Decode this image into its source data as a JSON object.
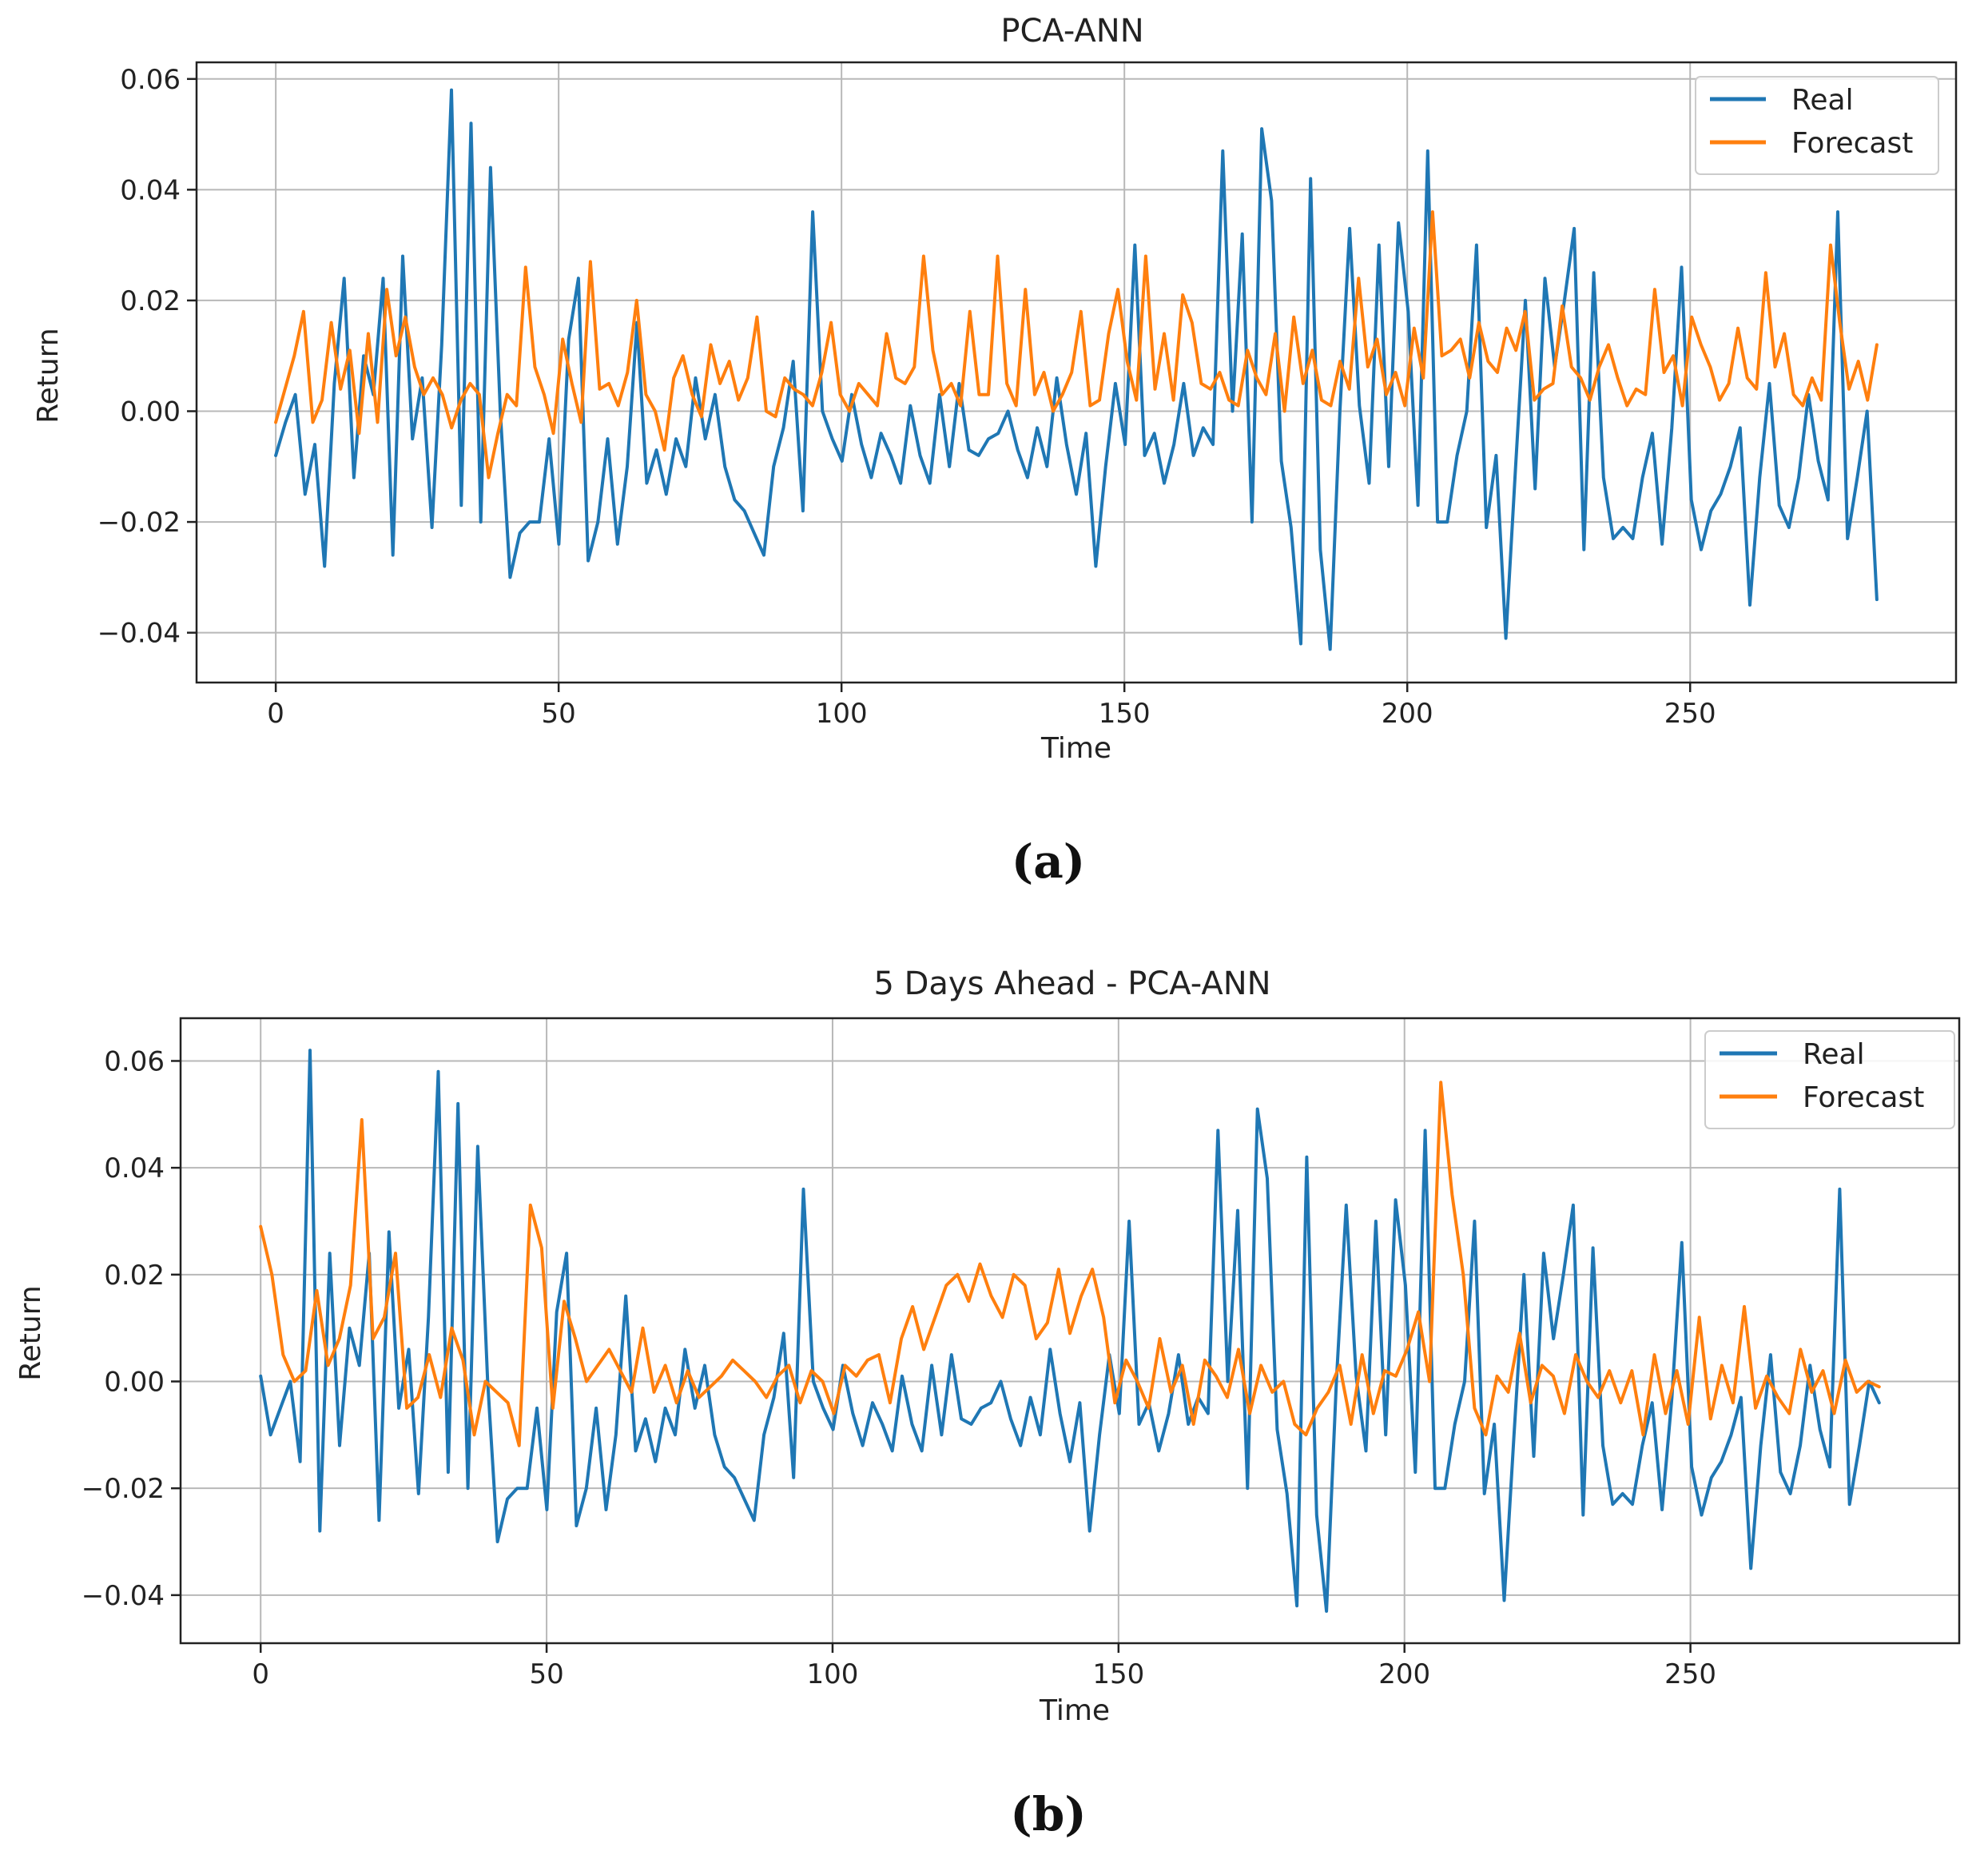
{
  "chart_data": [
    {
      "type": "line",
      "title": "PCA-ANN",
      "xlabel": "Time",
      "ylabel": "Return",
      "panel_label": "(a)",
      "xlim": [
        -14,
        297
      ],
      "ylim": [
        -0.049,
        0.063
      ],
      "xticks": [
        0,
        50,
        100,
        150,
        200,
        250
      ],
      "xtick_labels": [
        "0",
        "50",
        "100",
        "150",
        "200",
        "250"
      ],
      "yticks": [
        -0.04,
        -0.02,
        0.0,
        0.02,
        0.04,
        0.06
      ],
      "ytick_labels": [
        "−0.04",
        "−0.02",
        "0.00",
        "0.02",
        "0.04",
        "0.06"
      ],
      "grid": true,
      "legend_position": "top-right",
      "series": [
        {
          "name": "Real",
          "color": "#1f77b4",
          "values": [
            -0.008,
            -0.002,
            0.003,
            -0.015,
            -0.006,
            -0.028,
            0.005,
            0.024,
            -0.012,
            0.01,
            0.003,
            0.024,
            -0.026,
            0.028,
            -0.005,
            0.006,
            -0.021,
            0.012,
            0.058,
            -0.017,
            0.052,
            -0.02,
            0.044,
            0.0,
            -0.03,
            -0.022,
            -0.02,
            -0.02,
            -0.005,
            -0.024,
            0.013,
            0.024,
            -0.027,
            -0.02,
            -0.005,
            -0.024,
            -0.01,
            0.016,
            -0.013,
            -0.007,
            -0.015,
            -0.005,
            -0.01,
            0.006,
            -0.005,
            0.003,
            -0.01,
            -0.016,
            -0.018,
            -0.022,
            -0.026,
            -0.01,
            -0.003,
            0.009,
            -0.018,
            0.036,
            0.0,
            -0.005,
            -0.009,
            0.003,
            -0.006,
            -0.012,
            -0.004,
            -0.008,
            -0.013,
            0.001,
            -0.008,
            -0.013,
            0.003,
            -0.01,
            0.005,
            -0.007,
            -0.008,
            -0.005,
            -0.004,
            0.0,
            -0.007,
            -0.012,
            -0.003,
            -0.01,
            0.006,
            -0.006,
            -0.015,
            -0.004,
            -0.028,
            -0.01,
            0.005,
            -0.006,
            0.03,
            -0.008,
            -0.004,
            -0.013,
            -0.006,
            0.005,
            -0.008,
            -0.003,
            -0.006,
            0.047,
            0.0,
            0.032,
            -0.02,
            0.051,
            0.038,
            -0.009,
            -0.021,
            -0.042,
            0.042,
            -0.025,
            -0.043,
            0.0,
            0.033,
            0.001,
            -0.013,
            0.03,
            -0.01,
            0.034,
            0.018,
            -0.017,
            0.047,
            -0.02,
            -0.02,
            -0.008,
            0.0,
            0.03,
            -0.021,
            -0.008,
            -0.041,
            -0.01,
            0.02,
            -0.014,
            0.024,
            0.008,
            0.02,
            0.033,
            -0.025,
            0.025,
            -0.012,
            -0.023,
            -0.021,
            -0.023,
            -0.012,
            -0.004,
            -0.024,
            -0.003,
            0.026,
            -0.016,
            -0.025,
            -0.018,
            -0.015,
            -0.01,
            -0.003,
            -0.035,
            -0.012,
            0.005,
            -0.017,
            -0.021,
            -0.012,
            0.003,
            -0.009,
            -0.016,
            0.036,
            -0.023,
            -0.012,
            0.0,
            -0.034
          ]
        },
        {
          "name": "Forecast",
          "color": "#ff7f0e",
          "values": [
            -0.002,
            0.004,
            0.01,
            0.018,
            -0.002,
            0.002,
            0.016,
            0.004,
            0.011,
            -0.004,
            0.014,
            -0.002,
            0.022,
            0.01,
            0.017,
            0.008,
            0.003,
            0.006,
            0.003,
            -0.003,
            0.002,
            0.005,
            0.003,
            -0.012,
            -0.004,
            0.003,
            0.001,
            0.026,
            0.008,
            0.003,
            -0.004,
            0.013,
            0.005,
            -0.002,
            0.027,
            0.004,
            0.005,
            0.001,
            0.007,
            0.02,
            0.003,
            0.0,
            -0.007,
            0.006,
            0.01,
            0.003,
            -0.001,
            0.012,
            0.005,
            0.009,
            0.002,
            0.006,
            0.017,
            0.0,
            -0.001,
            0.006,
            0.004,
            0.003,
            0.001,
            0.007,
            0.016,
            0.003,
            0.0,
            0.005,
            0.003,
            0.001,
            0.014,
            0.006,
            0.005,
            0.008,
            0.028,
            0.011,
            0.003,
            0.005,
            0.001,
            0.018,
            0.003,
            0.003,
            0.028,
            0.005,
            0.001,
            0.022,
            0.003,
            0.007,
            0.0,
            0.003,
            0.007,
            0.018,
            0.001,
            0.002,
            0.014,
            0.022,
            0.009,
            0.002,
            0.028,
            0.004,
            0.014,
            0.002,
            0.021,
            0.016,
            0.005,
            0.004,
            0.007,
            0.002,
            0.001,
            0.011,
            0.006,
            0.003,
            0.014,
            0.0,
            0.017,
            0.005,
            0.011,
            0.002,
            0.001,
            0.009,
            0.004,
            0.024,
            0.008,
            0.013,
            0.003,
            0.007,
            0.001,
            0.015,
            0.006,
            0.036,
            0.01,
            0.011,
            0.013,
            0.006,
            0.016,
            0.009,
            0.007,
            0.015,
            0.011,
            0.018,
            0.002,
            0.004,
            0.005,
            0.019,
            0.008,
            0.006,
            0.002,
            0.008,
            0.012,
            0.006,
            0.001,
            0.004,
            0.003,
            0.022,
            0.007,
            0.01,
            0.001,
            0.017,
            0.012,
            0.008,
            0.002,
            0.005,
            0.015,
            0.006,
            0.004,
            0.025,
            0.008,
            0.014,
            0.003,
            0.001,
            0.006,
            0.002,
            0.03,
            0.016,
            0.004,
            0.009,
            0.002,
            0.012
          ]
        }
      ]
    },
    {
      "type": "line",
      "title": "5 Days Ahead - PCA-ANN",
      "xlabel": "Time",
      "ylabel": "Return",
      "panel_label": "(b)",
      "xlim": [
        -14,
        297
      ],
      "ylim": [
        -0.049,
        0.068
      ],
      "xticks": [
        0,
        50,
        100,
        150,
        200,
        250
      ],
      "xtick_labels": [
        "0",
        "50",
        "100",
        "150",
        "200",
        "250"
      ],
      "yticks": [
        -0.04,
        -0.02,
        0.0,
        0.02,
        0.04,
        0.06
      ],
      "ytick_labels": [
        "−0.04",
        "−0.02",
        "0.00",
        "0.02",
        "0.04",
        "0.06"
      ],
      "grid": true,
      "legend_position": "top-right",
      "series": [
        {
          "name": "Real",
          "color": "#1f77b4",
          "values": [
            0.001,
            -0.01,
            -0.005,
            0.0,
            -0.015,
            0.062,
            -0.028,
            0.024,
            -0.012,
            0.01,
            0.003,
            0.024,
            -0.026,
            0.028,
            -0.005,
            0.006,
            -0.021,
            0.012,
            0.058,
            -0.017,
            0.052,
            -0.02,
            0.044,
            0.0,
            -0.03,
            -0.022,
            -0.02,
            -0.02,
            -0.005,
            -0.024,
            0.013,
            0.024,
            -0.027,
            -0.02,
            -0.005,
            -0.024,
            -0.01,
            0.016,
            -0.013,
            -0.007,
            -0.015,
            -0.005,
            -0.01,
            0.006,
            -0.005,
            0.003,
            -0.01,
            -0.016,
            -0.018,
            -0.022,
            -0.026,
            -0.01,
            -0.003,
            0.009,
            -0.018,
            0.036,
            0.0,
            -0.005,
            -0.009,
            0.003,
            -0.006,
            -0.012,
            -0.004,
            -0.008,
            -0.013,
            0.001,
            -0.008,
            -0.013,
            0.003,
            -0.01,
            0.005,
            -0.007,
            -0.008,
            -0.005,
            -0.004,
            0.0,
            -0.007,
            -0.012,
            -0.003,
            -0.01,
            0.006,
            -0.006,
            -0.015,
            -0.004,
            -0.028,
            -0.01,
            0.005,
            -0.006,
            0.03,
            -0.008,
            -0.004,
            -0.013,
            -0.006,
            0.005,
            -0.008,
            -0.003,
            -0.006,
            0.047,
            0.0,
            0.032,
            -0.02,
            0.051,
            0.038,
            -0.009,
            -0.021,
            -0.042,
            0.042,
            -0.025,
            -0.043,
            0.0,
            0.033,
            0.001,
            -0.013,
            0.03,
            -0.01,
            0.034,
            0.018,
            -0.017,
            0.047,
            -0.02,
            -0.02,
            -0.008,
            0.0,
            0.03,
            -0.021,
            -0.008,
            -0.041,
            -0.01,
            0.02,
            -0.014,
            0.024,
            0.008,
            0.02,
            0.033,
            -0.025,
            0.025,
            -0.012,
            -0.023,
            -0.021,
            -0.023,
            -0.012,
            -0.004,
            -0.024,
            -0.003,
            0.026,
            -0.016,
            -0.025,
            -0.018,
            -0.015,
            -0.01,
            -0.003,
            -0.035,
            -0.012,
            0.005,
            -0.017,
            -0.021,
            -0.012,
            0.003,
            -0.009,
            -0.016,
            0.036,
            -0.023,
            -0.012,
            0.0,
            -0.004
          ]
        },
        {
          "name": "Forecast",
          "color": "#ff7f0e",
          "values": [
            0.029,
            0.02,
            0.005,
            0.0,
            0.002,
            0.017,
            0.003,
            0.008,
            0.018,
            0.049,
            0.008,
            0.012,
            0.024,
            -0.005,
            -0.003,
            0.005,
            -0.003,
            0.01,
            0.004,
            -0.01,
            0.0,
            -0.002,
            -0.004,
            -0.012,
            0.033,
            0.025,
            -0.005,
            0.015,
            0.008,
            0.0,
            0.003,
            0.006,
            0.002,
            -0.002,
            0.01,
            -0.002,
            0.003,
            -0.004,
            0.002,
            -0.003,
            -0.001,
            0.001,
            0.004,
            0.002,
            0.0,
            -0.003,
            0.001,
            0.003,
            -0.004,
            0.002,
            0.0,
            -0.006,
            0.003,
            0.001,
            0.004,
            0.005,
            -0.004,
            0.008,
            0.014,
            0.006,
            0.012,
            0.018,
            0.02,
            0.015,
            0.022,
            0.016,
            0.012,
            0.02,
            0.018,
            0.008,
            0.011,
            0.021,
            0.009,
            0.016,
            0.021,
            0.012,
            -0.004,
            0.004,
            0.0,
            -0.005,
            0.008,
            -0.002,
            0.003,
            -0.008,
            0.004,
            0.001,
            -0.003,
            0.006,
            -0.006,
            0.003,
            -0.002,
            0.0,
            -0.008,
            -0.01,
            -0.005,
            -0.002,
            0.003,
            -0.008,
            0.005,
            -0.006,
            0.002,
            0.001,
            0.006,
            0.013,
            0.0,
            0.056,
            0.035,
            0.02,
            -0.005,
            -0.01,
            0.001,
            -0.002,
            0.009,
            -0.004,
            0.003,
            0.001,
            -0.006,
            0.005,
            0.0,
            -0.003,
            0.002,
            -0.004,
            0.002,
            -0.01,
            0.005,
            -0.006,
            0.002,
            -0.008,
            0.012,
            -0.007,
            0.003,
            -0.004,
            0.014,
            -0.005,
            0.001,
            -0.003,
            -0.006,
            0.006,
            -0.002,
            0.002,
            -0.006,
            0.004,
            -0.002,
            0.0,
            -0.001
          ]
        }
      ]
    }
  ]
}
